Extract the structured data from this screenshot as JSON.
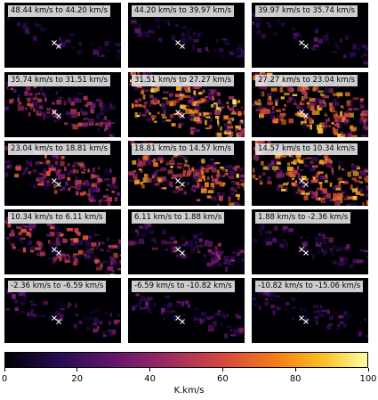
{
  "chart_data": {
    "type": "heatmap",
    "description_note": "",
    "panels": [
      {
        "label": "48.44 km/s to 44.20 km/s",
        "intensity": 0.08
      },
      {
        "label": "44.20 km/s to 39.97 km/s",
        "intensity": 0.1
      },
      {
        "label": "39.97 km/s to 35.74 km/s",
        "intensity": 0.12
      },
      {
        "label": "35.74 km/s to 31.51 km/s",
        "intensity": 0.45
      },
      {
        "label": "31.51 km/s to 27.27 km/s",
        "intensity": 0.85
      },
      {
        "label": "27.27 km/s to 23.04 km/s",
        "intensity": 0.8
      },
      {
        "label": "23.04 km/s to 18.81 km/s",
        "intensity": 0.55
      },
      {
        "label": "18.81 km/s to 14.57 km/s",
        "intensity": 0.75
      },
      {
        "label": "14.57 km/s to 10.34 km/s",
        "intensity": 0.78
      },
      {
        "label": "10.34 km/s to 6.11 km/s",
        "intensity": 0.55
      },
      {
        "label": "6.11 km/s to 1.88 km/s",
        "intensity": 0.3
      },
      {
        "label": "1.88 km/s to -2.36 km/s",
        "intensity": 0.22
      },
      {
        "label": "-2.36 km/s to -6.59 km/s",
        "intensity": 0.2
      },
      {
        "label": "-6.59 km/s to -10.82 km/s",
        "intensity": 0.18
      },
      {
        "label": "-10.82 km/s to -15.06 km/s",
        "intensity": 0.15
      }
    ],
    "colorbar": {
      "colormap": "inferno",
      "range": [
        0,
        100
      ],
      "ticks": [
        "0",
        "20",
        "40",
        "60",
        "80",
        "100"
      ],
      "label": "K.km/s"
    }
  }
}
